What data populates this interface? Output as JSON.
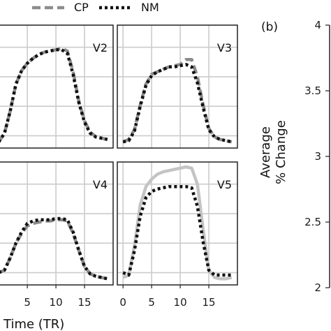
{
  "legend": {
    "cp_label": "CP",
    "nm_label": "NM"
  },
  "colors": {
    "cp": "#8c8c8c",
    "nm": "#111111",
    "light": "#c4c4c4",
    "grid": "#cccccc",
    "frame": "#222222"
  },
  "x_axis": {
    "label": "Time (TR)",
    "ticks": [
      0,
      5,
      10,
      15
    ]
  },
  "right_panel": {
    "tag": "(b)",
    "ylabel_line1": "Average",
    "ylabel_line2": "% Change",
    "ticks": [
      "4",
      "3.5",
      "3",
      "2.5",
      "2"
    ]
  },
  "chart_data": [
    {
      "type": "line",
      "panel": "V2",
      "x": [
        0,
        1,
        2,
        3,
        4,
        5,
        6,
        7,
        8,
        9,
        10,
        11,
        12,
        13,
        14,
        15,
        16,
        17,
        18,
        19
      ],
      "series": [
        {
          "name": "CP",
          "values": [
            0.05,
            0.12,
            0.3,
            0.52,
            0.63,
            0.69,
            0.73,
            0.76,
            0.78,
            0.79,
            0.8,
            0.81,
            0.79,
            0.62,
            0.38,
            0.22,
            0.13,
            0.09,
            0.08,
            0.07
          ]
        },
        {
          "name": "NM",
          "values": [
            0.05,
            0.12,
            0.3,
            0.52,
            0.63,
            0.69,
            0.73,
            0.76,
            0.78,
            0.79,
            0.8,
            0.8,
            0.77,
            0.6,
            0.37,
            0.21,
            0.12,
            0.09,
            0.08,
            0.07
          ]
        }
      ],
      "xlim": [
        -1,
        20
      ],
      "ylim": [
        0,
        1
      ]
    },
    {
      "type": "line",
      "panel": "V3",
      "x": [
        0,
        1,
        2,
        3,
        4,
        5,
        6,
        7,
        8,
        9,
        10,
        11,
        12,
        13,
        14,
        15,
        16,
        17,
        18,
        19
      ],
      "series": [
        {
          "name": "CP",
          "values": [
            0.05,
            0.07,
            0.15,
            0.35,
            0.52,
            0.6,
            0.62,
            0.64,
            0.66,
            0.67,
            0.68,
            0.72,
            0.72,
            0.58,
            0.35,
            0.16,
            0.09,
            0.07,
            0.06,
            0.05
          ]
        },
        {
          "name": "NM",
          "values": [
            0.05,
            0.06,
            0.14,
            0.34,
            0.51,
            0.59,
            0.62,
            0.64,
            0.66,
            0.66,
            0.67,
            0.68,
            0.66,
            0.53,
            0.33,
            0.15,
            0.09,
            0.07,
            0.06,
            0.05
          ]
        }
      ],
      "xlim": [
        -1,
        20
      ],
      "ylim": [
        0,
        1
      ]
    },
    {
      "type": "line",
      "panel": "V4",
      "x": [
        0,
        1,
        2,
        3,
        4,
        5,
        6,
        7,
        8,
        9,
        10,
        11,
        12,
        13,
        14,
        15,
        16,
        17,
        18,
        19
      ],
      "series": [
        {
          "name": "CP",
          "values": [
            0.1,
            0.12,
            0.22,
            0.34,
            0.42,
            0.48,
            0.5,
            0.51,
            0.52,
            0.52,
            0.53,
            0.53,
            0.52,
            0.42,
            0.28,
            0.15,
            0.09,
            0.07,
            0.06,
            0.05
          ]
        },
        {
          "name": "NM",
          "values": [
            0.1,
            0.12,
            0.22,
            0.34,
            0.43,
            0.5,
            0.52,
            0.53,
            0.53,
            0.53,
            0.54,
            0.54,
            0.53,
            0.43,
            0.28,
            0.15,
            0.09,
            0.07,
            0.06,
            0.05
          ]
        }
      ],
      "xlim": [
        -1,
        20
      ],
      "ylim": [
        0,
        1
      ]
    },
    {
      "type": "line",
      "panel": "V5",
      "x": [
        0,
        1,
        2,
        3,
        4,
        5,
        6,
        7,
        8,
        9,
        10,
        11,
        12,
        13,
        14,
        15,
        16,
        17,
        18,
        19
      ],
      "series": [
        {
          "name": "CP",
          "values": [
            0.06,
            0.08,
            0.32,
            0.65,
            0.8,
            0.86,
            0.9,
            0.92,
            0.93,
            0.94,
            0.95,
            0.96,
            0.95,
            0.82,
            0.45,
            0.12,
            0.06,
            0.05,
            0.05,
            0.06
          ]
        },
        {
          "name": "NM",
          "values": [
            0.1,
            0.08,
            0.28,
            0.56,
            0.71,
            0.76,
            0.78,
            0.79,
            0.8,
            0.8,
            0.8,
            0.8,
            0.79,
            0.64,
            0.35,
            0.12,
            0.08,
            0.08,
            0.08,
            0.08
          ]
        }
      ],
      "xlim": [
        -1,
        20
      ],
      "ylim": [
        0,
        1
      ]
    }
  ]
}
